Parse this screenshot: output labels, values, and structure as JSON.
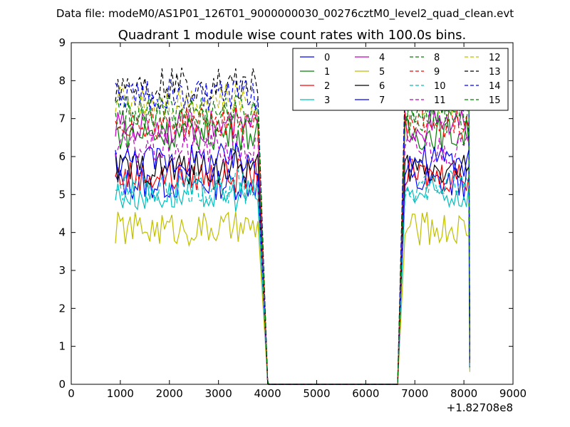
{
  "chart_data": {
    "type": "line",
    "suptitle": "Data file: modeM0/AS1P01_126T01_9000000030_00276cztM0_level2_quad_clean.evt",
    "title": "Quadrant 1 module wise count rates with 100.0s bins.",
    "xlabel": "",
    "ylabel": "",
    "x_offset_label": "+1.82708e8",
    "xlim": [
      0,
      9000
    ],
    "ylim": [
      0,
      9
    ],
    "xticks": [
      "0",
      "1000",
      "2000",
      "3000",
      "4000",
      "5000",
      "6000",
      "7000",
      "8000",
      "9000"
    ],
    "yticks": [
      "0",
      "1",
      "2",
      "3",
      "4",
      "5",
      "6",
      "7",
      "8",
      "9"
    ],
    "legend_position": "top-right",
    "x": [
      900,
      3800,
      4000,
      6650,
      6800,
      8100
    ],
    "gap": {
      "from": 4000,
      "to": 6650,
      "value": 0
    },
    "series": [
      {
        "name": "0",
        "color": "#0000ff",
        "dash": "solid",
        "level": 5.3
      },
      {
        "name": "1",
        "color": "#008000",
        "dash": "solid",
        "level": 6.6
      },
      {
        "name": "2",
        "color": "#ff0000",
        "dash": "solid",
        "level": 5.5
      },
      {
        "name": "3",
        "color": "#00bfbf",
        "dash": "solid",
        "level": 5.0
      },
      {
        "name": "4",
        "color": "#bf00bf",
        "dash": "solid",
        "level": 6.8
      },
      {
        "name": "5",
        "color": "#bfbf00",
        "dash": "solid",
        "level": 4.1
      },
      {
        "name": "6",
        "color": "#000000",
        "dash": "solid",
        "level": 5.7
      },
      {
        "name": "7",
        "color": "#0000ff",
        "dash": "solid",
        "level": 5.9
      },
      {
        "name": "8",
        "color": "#008000",
        "dash": "dashed",
        "level": 7.0
      },
      {
        "name": "9",
        "color": "#ff0000",
        "dash": "dashed",
        "level": 6.9
      },
      {
        "name": "10",
        "color": "#00bfbf",
        "dash": "dashed",
        "level": 5.2
      },
      {
        "name": "11",
        "color": "#bf00bf",
        "dash": "dashed",
        "level": 6.2
      },
      {
        "name": "12",
        "color": "#bfbf00",
        "dash": "dashed",
        "level": 7.5
      },
      {
        "name": "13",
        "color": "#000000",
        "dash": "dashed",
        "level": 7.9
      },
      {
        "name": "14",
        "color": "#0000ff",
        "dash": "dashed",
        "level": 7.6
      },
      {
        "name": "15",
        "color": "#008000",
        "dash": "dashed",
        "level": 7.2
      }
    ]
  }
}
